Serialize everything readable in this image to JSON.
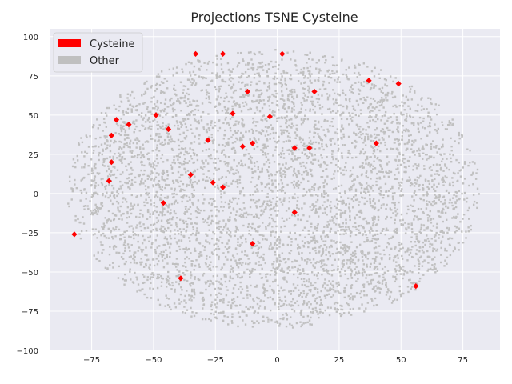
{
  "chart_data": {
    "type": "scatter",
    "title": "Projections TSNE Cysteine",
    "xlabel": "",
    "ylabel": "",
    "xlim": [
      -92,
      90
    ],
    "ylim": [
      -100,
      105
    ],
    "xticks": [
      -75,
      -50,
      -25,
      0,
      25,
      50,
      75
    ],
    "yticks": [
      -100,
      -75,
      -50,
      -25,
      0,
      25,
      50,
      75,
      100
    ],
    "grid": true,
    "legend_position": "top-left",
    "background_color": "#eaeaf2",
    "series": [
      {
        "name": "Cysteine",
        "color": "#ff0000",
        "marker": "diamond",
        "points": [
          [
            -33,
            89
          ],
          [
            -22,
            89
          ],
          [
            2,
            89
          ],
          [
            -12,
            65
          ],
          [
            15,
            65
          ],
          [
            37,
            72
          ],
          [
            49,
            70
          ],
          [
            -65,
            47
          ],
          [
            -60,
            44
          ],
          [
            -49,
            50
          ],
          [
            -44,
            41
          ],
          [
            -18,
            51
          ],
          [
            -3,
            49
          ],
          [
            -67,
            37
          ],
          [
            -28,
            34
          ],
          [
            -14,
            30
          ],
          [
            -10,
            32
          ],
          [
            7,
            29
          ],
          [
            13,
            29
          ],
          [
            40,
            32
          ],
          [
            -67,
            20
          ],
          [
            -35,
            12
          ],
          [
            -68,
            8
          ],
          [
            -26,
            7
          ],
          [
            -22,
            4
          ],
          [
            -46,
            -6
          ],
          [
            7,
            -12
          ],
          [
            -82,
            -26
          ],
          [
            -10,
            -32
          ],
          [
            -39,
            -54
          ],
          [
            56,
            -59
          ]
        ]
      },
      {
        "name": "Other",
        "color": "#c0c0c0",
        "marker": "point",
        "count": 5200,
        "extent": {
          "x": [
            -85,
            82
          ],
          "y": [
            -86,
            92
          ]
        },
        "note_shape": "elliptical cloud centered near (0, 0)"
      }
    ]
  },
  "legend": {
    "items": [
      {
        "label": "Cysteine",
        "color": "#ff0000"
      },
      {
        "label": "Other",
        "color": "#c0c0c0"
      }
    ]
  }
}
